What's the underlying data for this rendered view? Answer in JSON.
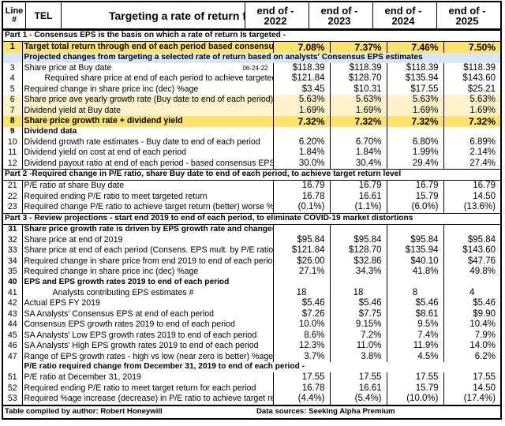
{
  "header": {
    "line_label": "Line #",
    "ticker": "TEL",
    "title": "Targeting a rate of return for periods 2019 to",
    "years": [
      "end of - 2022",
      "end of - 2023",
      "end of - 2024",
      "end of - 2025"
    ]
  },
  "date_label": "06-24-22",
  "rows": [
    {
      "kind": "section",
      "text": "Part 1 - Consensus EPS is the basis on which a rate of return Is targeted -"
    },
    {
      "kind": "yellow",
      "line": "1",
      "text": "Target total return through end of each period based consensus EPS estimates",
      "values": [
        "7.08%",
        "7.37%",
        "7.46%",
        "7.50%"
      ]
    },
    {
      "kind": "subhead",
      "text": "Projected changes from targeting a selected rate of return based on analysts' Consensus EPS estimates"
    },
    {
      "kind": "data",
      "line": "3",
      "text": "Share price at Buy date",
      "values": [
        "$118.39",
        "$118.39",
        "$118.39",
        "$118.39"
      ],
      "date": true
    },
    {
      "kind": "data",
      "line": "4",
      "text": "Required share price at end of each period to achieve targeted return level",
      "values": [
        "$121.84",
        "$128.70",
        "$135.94",
        "$143.60"
      ],
      "indent": 1
    },
    {
      "kind": "data",
      "line": "5",
      "text": "Required change in share price inc (dec) %age",
      "values": [
        "$3.45",
        "$10.31",
        "$17.55",
        "$25.21"
      ]
    },
    {
      "kind": "cream",
      "line": "6",
      "text": "Share price ave yearly growth rate (Buy date to end of each period) inc (dec) %age",
      "values": [
        "5.63%",
        "5.63%",
        "5.63%",
        "5.63%"
      ]
    },
    {
      "kind": "cream",
      "line": "7",
      "text": "Dividend yield at Buy date",
      "values": [
        "1.69%",
        "1.69%",
        "1.69%",
        "1.69%"
      ]
    },
    {
      "kind": "yellow",
      "line": "8",
      "text": "Share price growth rate + dividend yield",
      "values": [
        "7.32%",
        "7.32%",
        "7.32%",
        "7.32%"
      ]
    },
    {
      "kind": "datahead",
      "line": "9",
      "text": "Dividend data"
    },
    {
      "kind": "data",
      "line": "10",
      "text": "Dividend growth rate estimates  - Buy date to end of each period",
      "values": [
        "6.20%",
        "6.70%",
        "6.80%",
        "6.89%"
      ]
    },
    {
      "kind": "data",
      "line": "11",
      "text": "Dividend yield on cost at end of each period",
      "values": [
        "1.84%",
        "1.84%",
        "1.99%",
        "2.14%"
      ]
    },
    {
      "kind": "data",
      "line": "12",
      "text": "Dividend payout ratio at end of each period - based consensus EPS est.",
      "values": [
        "30.0%",
        "30.4%",
        "29.4%",
        "27.4%"
      ]
    },
    {
      "kind": "section",
      "text": "Part 2 -Required change in P/E ratio, share Buy date to end of each period, to achieve target return level"
    },
    {
      "kind": "data",
      "line": "21",
      "text": "P/E ratio at share Buy date",
      "values": [
        "16.79",
        "16.79",
        "16.79",
        "16.79"
      ]
    },
    {
      "kind": "data",
      "line": "22",
      "text": "Required ending P/E ratio to meet targeted return",
      "values": [
        "16.78",
        "16.61",
        "15.79",
        "14.50"
      ]
    },
    {
      "kind": "data",
      "line": "23",
      "text": "Required change P/E ratio to achieve target return (better) worse %age",
      "values": [
        "(0.1%)",
        "(1.1%)",
        "(6.0%)",
        "(13.6%)"
      ]
    },
    {
      "kind": "section",
      "text": "Part 3 - Review projections - start end 2019 to end of each period, to eliminate COVID-19 market distortions"
    },
    {
      "kind": "datahead",
      "line": "31",
      "text": "Share price growth rate is driven by EPS growth rate and changes in P/E ratio"
    },
    {
      "kind": "data",
      "line": "32",
      "text": "Share price at end of 2019",
      "values": [
        "$95.84",
        "$95.84",
        "$95.84",
        "$95.84"
      ]
    },
    {
      "kind": "data",
      "line": "33",
      "text": "Share price at end of each period (Consens. EPS mult. by P/E ratio) as above",
      "values": [
        "$121.84",
        "$128.70",
        "$135.94",
        "$143.60"
      ]
    },
    {
      "kind": "data",
      "line": "34",
      "text": "Required change in share price from end 2019 to end of each period, inc (dec)",
      "values": [
        "$26.00",
        "$32.86",
        "$40.10",
        "$47.76"
      ]
    },
    {
      "kind": "data",
      "line": "35",
      "text": "Required change in share price inc (dec) %age",
      "values": [
        "27.1%",
        "34.3%",
        "41.8%",
        "49.8%"
      ]
    },
    {
      "kind": "datahead",
      "line": "40",
      "text": "EPS and EPS growth rates 2019 to end of each period"
    },
    {
      "kind": "data",
      "line": "41",
      "text": "Analysts contributing EPS estimates #",
      "values": [
        "18",
        "18",
        "8",
        "4"
      ],
      "center": true,
      "indent": 2
    },
    {
      "kind": "data",
      "line": "42",
      "text": "Actual EPS FY 2019",
      "values": [
        "$5.46",
        "$5.46",
        "$5.46",
        "$5.46"
      ]
    },
    {
      "kind": "data",
      "line": "43",
      "text": "SA Analysts' Consensus EPS at end of each period",
      "values": [
        "$7.26",
        "$7.75",
        "$8.61",
        "$9.90"
      ]
    },
    {
      "kind": "data",
      "line": "44",
      "text": "Consensus EPS growth rates 2019 to end of each period",
      "values": [
        "10.0%",
        "9.15%",
        "9.5%",
        "10.4%"
      ]
    },
    {
      "kind": "data",
      "line": "45",
      "text": "SA Analysts' Low EPS growth rates 2019 to end of each period",
      "values": [
        "8.6%",
        "7.2%",
        "7.4%",
        "7.9%"
      ]
    },
    {
      "kind": "data",
      "line": "46",
      "text": "SA Analysts' High EPS growth rates 2019 to end of each period",
      "values": [
        "12.3%",
        "11.0%",
        "11.9%",
        "14.0%"
      ]
    },
    {
      "kind": "data",
      "line": "47",
      "text": "Range of EPS growth rates - high vs low (near zero is better) %age points",
      "values": [
        "3.7%",
        "3.8%",
        "4.5%",
        "6.2%"
      ]
    },
    {
      "kind": "subhead2",
      "text": "P/E ratio required change from December 31, 2019 to end of each period -"
    },
    {
      "kind": "data",
      "line": "51",
      "text": "P/E ratio at December 31, 2019",
      "values": [
        "17.55",
        "17.55",
        "17.55",
        "17.55"
      ]
    },
    {
      "kind": "data",
      "line": "52",
      "text": "Required ending P/E ratio to meet target return for each period",
      "values": [
        "16.78",
        "16.61",
        "15.79",
        "14.50"
      ]
    },
    {
      "kind": "data",
      "line": "53",
      "text": "Required %age increase (decrease) in P/E ratio to achieve target return",
      "values": [
        "(4.4%)",
        "(5.4%)",
        "(10.0%)",
        "(17.4%)"
      ]
    }
  ],
  "footer": {
    "author": "Table compiled by author: Robert Honeywill",
    "sources": "Data sources: Seeking Alpha Premium"
  }
}
